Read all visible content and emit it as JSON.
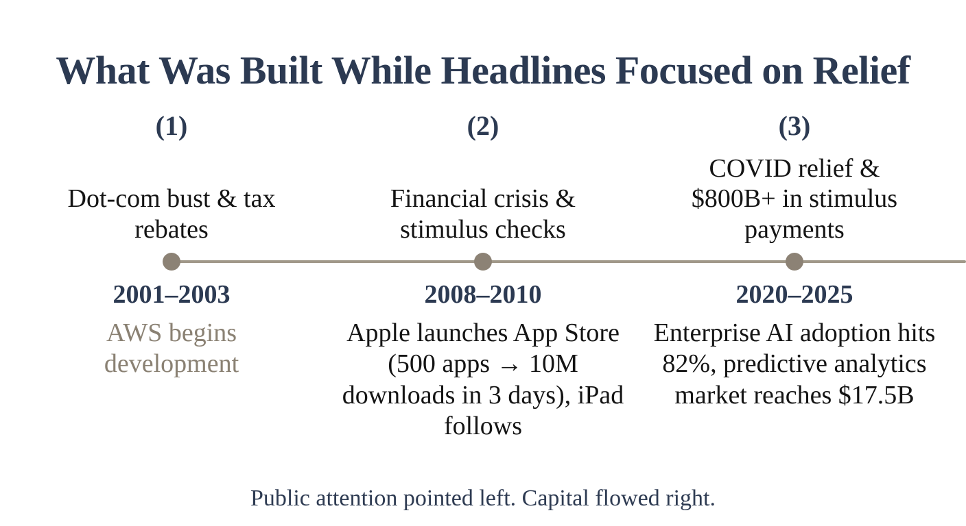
{
  "slide": {
    "title": "What Was Built While Headlines Focused on Relief",
    "footer": "Public attention pointed left. Capital flowed right."
  },
  "colors": {
    "title_navy": "#2c3a52",
    "body_black": "#141414",
    "highlight_taupe": "#8a8173",
    "timeline_line": "#a09889",
    "timeline_dot": "#8c8275",
    "background": "#ffffff"
  },
  "timeline": {
    "items": [
      {
        "number": "(1)",
        "headline": "Dot-com bust & tax rebates",
        "period": "2001–2003",
        "detail": "AWS begins development"
      },
      {
        "number": "(2)",
        "headline": "Financial crisis & stimulus checks",
        "period": "2008–2010",
        "detail": "Apple launches App Store (500 apps → 10M downloads in 3 days), iPad follows"
      },
      {
        "number": "(3)",
        "headline": "COVID relief & $800B+ in stimulus payments",
        "period": "2020–2025",
        "detail": "Enterprise AI adoption hits 82%, predictive analytics market reaches $17.5B"
      }
    ]
  }
}
